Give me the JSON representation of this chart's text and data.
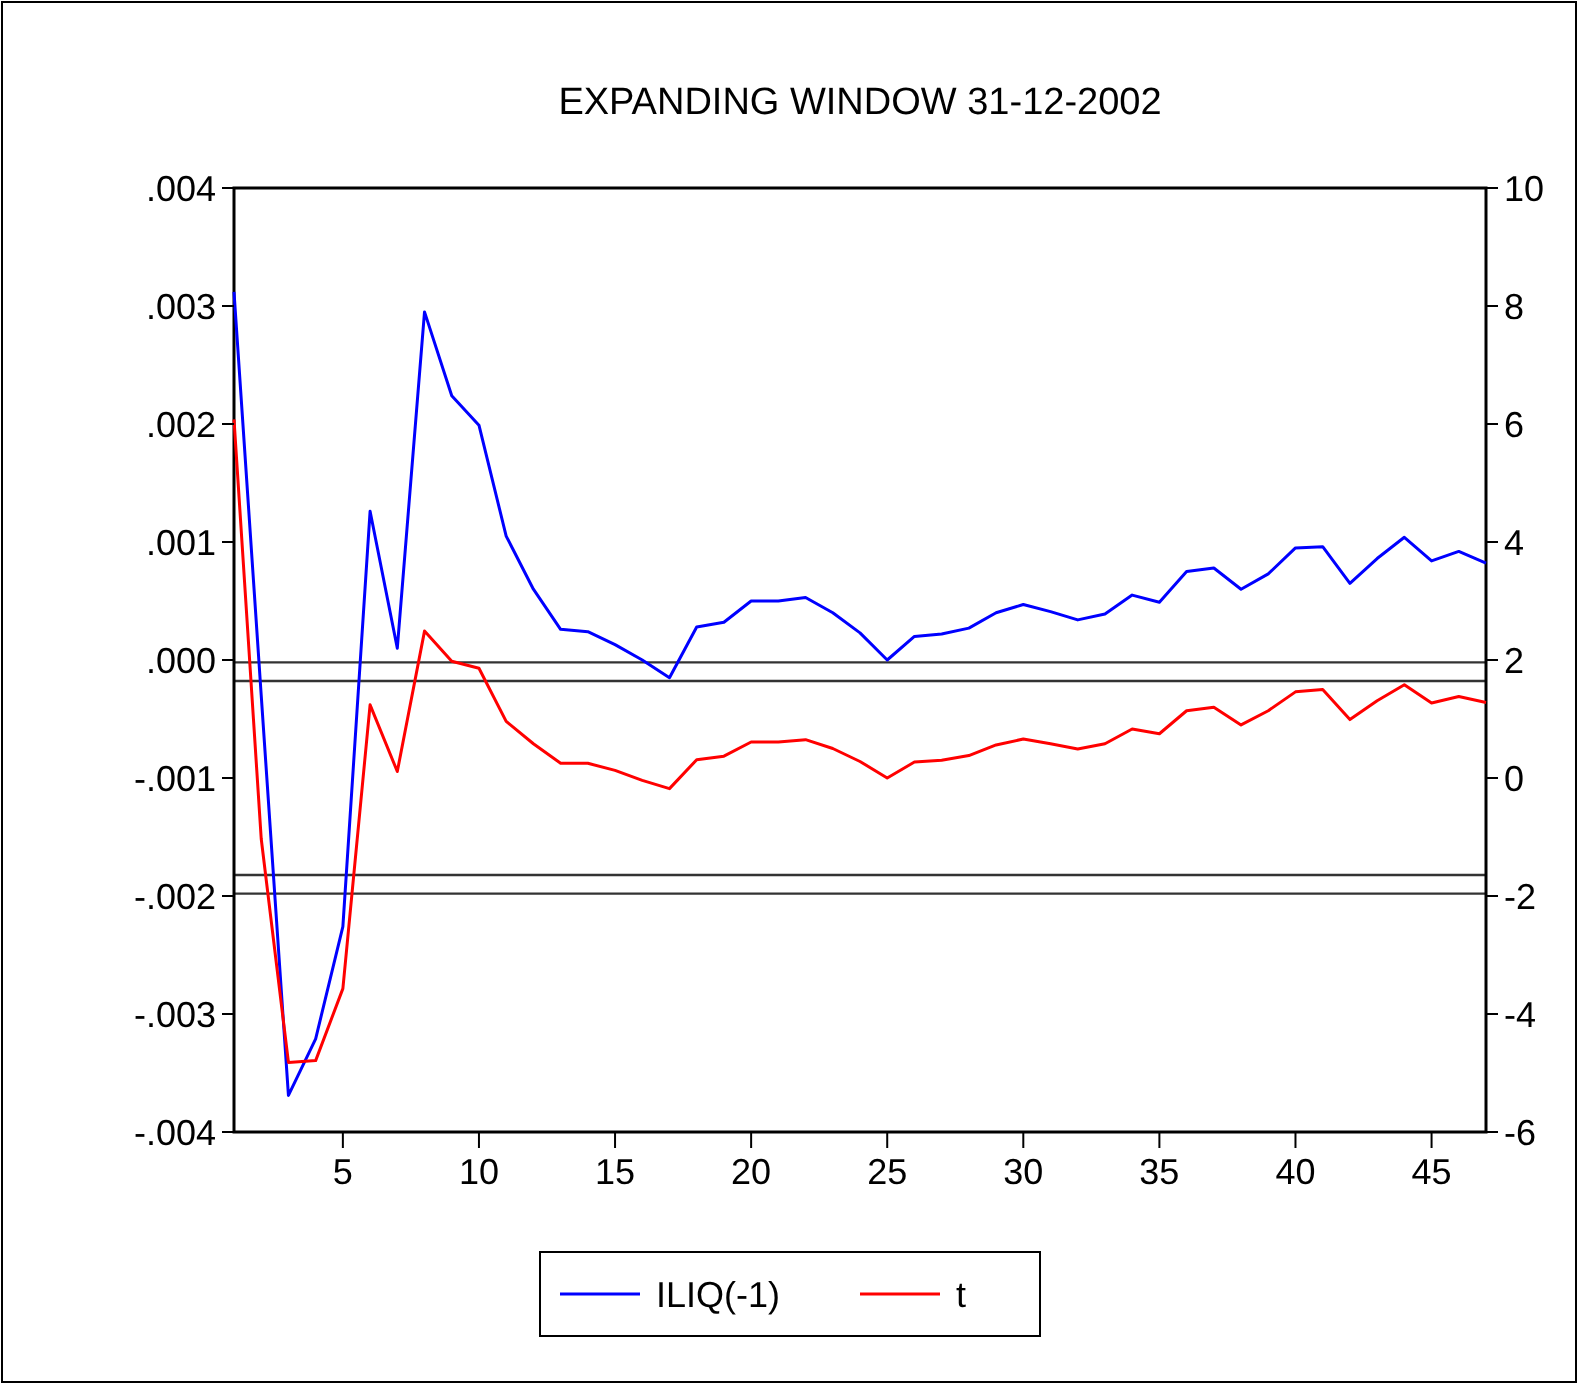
{
  "chart_data": {
    "type": "line",
    "title": "EXPANDING WINDOW 31-12-2002",
    "x": [
      1,
      2,
      3,
      4,
      5,
      6,
      7,
      8,
      9,
      10,
      11,
      12,
      13,
      14,
      15,
      16,
      17,
      18,
      19,
      20,
      21,
      22,
      23,
      24,
      25,
      26,
      27,
      28,
      29,
      30,
      31,
      32,
      33,
      34,
      35,
      36,
      37,
      38,
      39,
      40,
      41,
      42,
      43,
      44,
      45,
      46,
      47
    ],
    "series": [
      {
        "name": "ILIQ(-1)",
        "color": "#0000ff",
        "values": [
          0.00312,
          -0.0003,
          -0.00369,
          -0.00321,
          -0.00226,
          0.00126,
          0.0001,
          0.00295,
          0.00224,
          0.00199,
          0.00105,
          0.0006,
          0.00026,
          0.00024,
          0.00013,
          0,
          -0.00015,
          0.00028,
          0.00032,
          0.0005,
          0.0005,
          0.00053,
          0.0004,
          0.00023,
          0,
          0.0002,
          0.00022,
          0.00027,
          0.0004,
          0.00047,
          0.00041,
          0.00034,
          0.00039,
          0.00055,
          0.00049,
          0.00075,
          0.00078,
          0.0006,
          0.00073,
          0.00095,
          0.00096,
          0.00065,
          0.00086,
          0.00104,
          0.00084,
          0.00092,
          0.00082
        ]
      },
      {
        "name": "t",
        "color": "#ff0000",
        "axis": "y2",
        "values": [
          6.08,
          -1.03,
          -4.82,
          -4.79,
          -3.57,
          1.24,
          0.11,
          2.49,
          1.98,
          1.86,
          0.96,
          0.58,
          0.25,
          0.25,
          0.13,
          -0.04,
          -0.18,
          0.31,
          0.37,
          0.61,
          0.61,
          0.65,
          0.5,
          0.28,
          0.0,
          0.27,
          0.3,
          0.38,
          0.56,
          0.66,
          0.58,
          0.49,
          0.58,
          0.83,
          0.75,
          1.14,
          1.2,
          0.9,
          1.14,
          1.46,
          1.5,
          0.99,
          1.31,
          1.58,
          1.27,
          1.38,
          1.28
        ]
      }
    ],
    "xlim": [
      1,
      47
    ],
    "xticks": [
      5,
      10,
      15,
      20,
      25,
      30,
      35,
      40,
      45
    ],
    "ylim": [
      -0.004,
      0.004
    ],
    "yticks": [
      {
        "value": -0.004,
        "label": "-.004"
      },
      {
        "value": -0.003,
        "label": "-.003"
      },
      {
        "value": -0.002,
        "label": "-.002"
      },
      {
        "value": -0.001,
        "label": "-.001"
      },
      {
        "value": 0,
        "label": ".000"
      },
      {
        "value": 0.001,
        "label": ".001"
      },
      {
        "value": 0.002,
        "label": ".002"
      },
      {
        "value": 0.003,
        "label": ".003"
      },
      {
        "value": 0.004,
        "label": ".004"
      }
    ],
    "y2lim": [
      -6,
      10
    ],
    "y2ticks": [
      -6,
      -4,
      -2,
      0,
      2,
      4,
      6,
      8,
      10
    ],
    "ref_lines": [
      {
        "axis": "y2",
        "value": 1.96,
        "color": "#333333"
      },
      {
        "axis": "y2",
        "value": 1.645,
        "color": "#333333"
      },
      {
        "axis": "y2",
        "value": -1.645,
        "color": "#333333"
      },
      {
        "axis": "y2",
        "value": -1.96,
        "color": "#333333"
      }
    ],
    "grid": false,
    "legend": "bottom",
    "marker": "none",
    "line_style": "solid"
  }
}
